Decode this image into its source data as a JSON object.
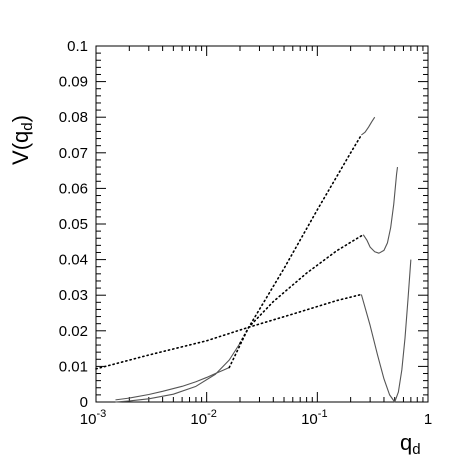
{
  "chart_data": {
    "type": "line",
    "title": "",
    "xlabel": {
      "base": "q",
      "sub": "d"
    },
    "ylabel": {
      "pre": "V(",
      "base": "q",
      "sub": "d",
      "post": ")"
    },
    "xscale": "log",
    "xlim": [
      0.001,
      1
    ],
    "ylim": [
      0,
      0.1
    ],
    "grid": false,
    "y_ticks": [
      {
        "value": 0,
        "label": "0"
      },
      {
        "value": 0.01,
        "label": "0.01"
      },
      {
        "value": 0.02,
        "label": "0.02"
      },
      {
        "value": 0.03,
        "label": "0.03"
      },
      {
        "value": 0.04,
        "label": "0.04"
      },
      {
        "value": 0.05,
        "label": "0.05"
      },
      {
        "value": 0.06,
        "label": "0.06"
      },
      {
        "value": 0.07,
        "label": "0.07"
      },
      {
        "value": 0.08,
        "label": "0.08"
      },
      {
        "value": 0.09,
        "label": "0.09"
      },
      {
        "value": 0.1,
        "label": "0.1"
      }
    ],
    "x_ticks": [
      {
        "value": 0.001,
        "base": "10",
        "exp": "-3"
      },
      {
        "value": 0.01,
        "base": "10",
        "exp": "-2"
      },
      {
        "value": 0.1,
        "base": "10",
        "exp": "-1"
      },
      {
        "value": 1,
        "base": "1",
        "exp": ""
      }
    ],
    "series": [
      {
        "style": "dotted",
        "x": [
          0.001,
          0.003,
          0.01,
          0.024,
          0.06,
          0.15,
          0.25
        ],
        "y": [
          0.0093,
          0.0132,
          0.0172,
          0.021,
          0.0247,
          0.0285,
          0.0302
        ]
      },
      {
        "style": "solid",
        "x": [
          0.25,
          0.3,
          0.35,
          0.4,
          0.45,
          0.5,
          0.54,
          0.58,
          0.62,
          0.66,
          0.7
        ],
        "y": [
          0.0302,
          0.0215,
          0.0132,
          0.0065,
          0.002,
          0.0,
          0.0028,
          0.009,
          0.018,
          0.029,
          0.04
        ]
      },
      {
        "style": "solid",
        "x": [
          0.0015,
          0.002,
          0.003,
          0.005,
          0.008,
          0.012,
          0.016,
          0.02
        ],
        "y": [
          0.0,
          0.0003,
          0.0009,
          0.0022,
          0.0044,
          0.0078,
          0.0118,
          0.0165
        ]
      },
      {
        "style": "dotted",
        "x": [
          0.02,
          0.024,
          0.04,
          0.08,
          0.15,
          0.26
        ],
        "y": [
          0.0165,
          0.021,
          0.0282,
          0.0362,
          0.0425,
          0.047
        ]
      },
      {
        "style": "solid",
        "x": [
          0.26,
          0.28,
          0.3,
          0.33,
          0.36,
          0.4,
          0.43,
          0.46,
          0.49,
          0.52,
          0.53
        ],
        "y": [
          0.047,
          0.0455,
          0.0435,
          0.0422,
          0.0418,
          0.0426,
          0.0447,
          0.049,
          0.0555,
          0.064,
          0.066
        ]
      },
      {
        "style": "solid",
        "x": [
          0.0015,
          0.002,
          0.003,
          0.004,
          0.006,
          0.008,
          0.01,
          0.012,
          0.014,
          0.016
        ],
        "y": [
          0.0006,
          0.0011,
          0.0021,
          0.003,
          0.0044,
          0.0057,
          0.0069,
          0.008,
          0.0089,
          0.0097
        ]
      },
      {
        "style": "dotted",
        "x": [
          0.016,
          0.024,
          0.05,
          0.1,
          0.2,
          0.25
        ],
        "y": [
          0.0097,
          0.021,
          0.0375,
          0.054,
          0.07,
          0.075
        ]
      },
      {
        "style": "solid",
        "x": [
          0.25,
          0.27,
          0.29,
          0.31,
          0.33
        ],
        "y": [
          0.075,
          0.0758,
          0.0772,
          0.0787,
          0.08
        ]
      }
    ]
  }
}
